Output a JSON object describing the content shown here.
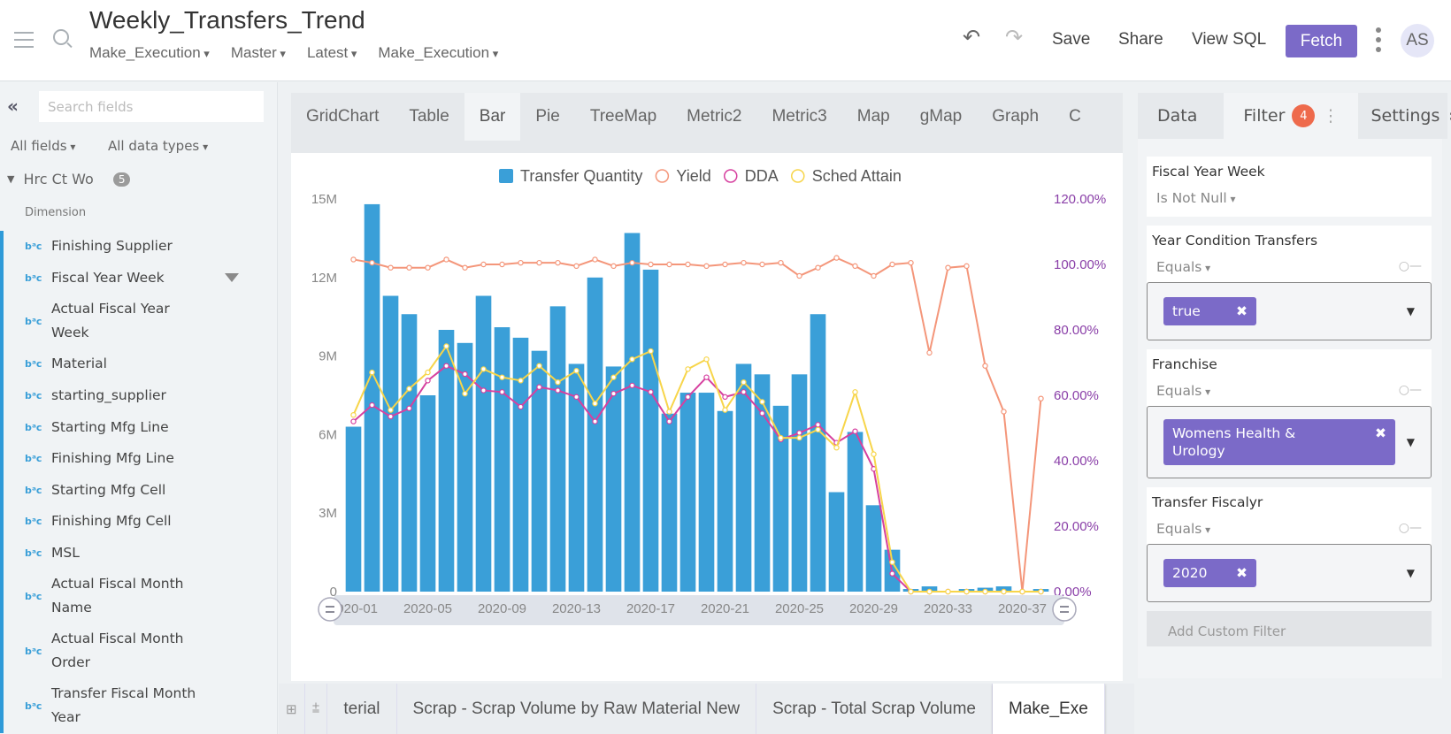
{
  "header": {
    "title": "Weekly_Transfers_Trend",
    "crumbs": [
      "Make_Execution",
      "Master",
      "Latest",
      "Make_Execution"
    ],
    "save": "Save",
    "share": "Share",
    "view_sql": "View SQL",
    "fetch": "Fetch",
    "avatar": "AS",
    "accent": "#7b6ac8"
  },
  "sidebar": {
    "search_placeholder": "Search fields",
    "all_fields": "All fields",
    "all_types": "All data types",
    "group": "Hrc Ct Wo",
    "group_count": "5",
    "section": "Dimension",
    "items": [
      {
        "label": "Finishing Supplier"
      },
      {
        "label": "Fiscal Year Week",
        "filtered": true
      },
      {
        "label": "Actual Fiscal Year Week"
      },
      {
        "label": "Material"
      },
      {
        "label": "starting_supplier"
      },
      {
        "label": "Starting Mfg Line"
      },
      {
        "label": "Finishing Mfg Line"
      },
      {
        "label": "Starting Mfg Cell"
      },
      {
        "label": "Finishing Mfg Cell"
      },
      {
        "label": "MSL"
      },
      {
        "label": "Actual Fiscal Month Name"
      },
      {
        "label": "Actual Fiscal Month Order"
      },
      {
        "label": "Transfer Fiscal Month Year"
      }
    ],
    "type_icon": "string-abc-icon"
  },
  "chart_tabs": [
    "GridChart",
    "Table",
    "Bar",
    "Pie",
    "TreeMap",
    "Metric2",
    "Metric3",
    "Map",
    "gMap",
    "Graph",
    "C"
  ],
  "active_chart_tab": "Bar",
  "bottom_tabs": [
    "terial",
    "Scrap - Scrap Volume by Raw Material New",
    "Scrap - Total Scrap Volume",
    "Make_Exe"
  ],
  "right": {
    "tabs": [
      "Data",
      "Filter",
      "Settings"
    ],
    "filter_count": "4",
    "filters": [
      {
        "title": "Fiscal Year Week",
        "op": "Is Not Null"
      },
      {
        "title": "Year Condition Transfers",
        "op": "Equals",
        "value": "true"
      },
      {
        "title": "Franchise",
        "op": "Equals",
        "value": "Womens Health & Urology"
      },
      {
        "title": "Transfer Fiscalyr",
        "op": "Equals",
        "value": "2020"
      }
    ],
    "add_filter": "Add Custom Filter"
  },
  "chart_data": {
    "type": "bar",
    "categories": [
      "2020-01",
      "2020-02",
      "2020-03",
      "2020-04",
      "2020-05",
      "2020-06",
      "2020-07",
      "2020-08",
      "2020-09",
      "2020-10",
      "2020-11",
      "2020-12",
      "2020-13",
      "2020-14",
      "2020-15",
      "2020-16",
      "2020-17",
      "2020-18",
      "2020-19",
      "2020-20",
      "2020-21",
      "2020-22",
      "2020-23",
      "2020-24",
      "2020-25",
      "2020-26",
      "2020-27",
      "2020-28",
      "2020-29",
      "2020-30",
      "2020-31",
      "2020-32",
      "2020-33",
      "2020-34",
      "2020-35",
      "2020-36",
      "2020-37",
      "2020-38"
    ],
    "x_tick_labels": [
      "2020-01",
      "2020-05",
      "2020-09",
      "2020-13",
      "2020-17",
      "2020-21",
      "2020-25",
      "2020-29",
      "2020-33",
      "2020-37"
    ],
    "y_left": {
      "ticks": [
        "0",
        "3M",
        "6M",
        "9M",
        "12M",
        "15M"
      ],
      "range": [
        0,
        15000000
      ]
    },
    "y_right": {
      "ticks": [
        "0.00%",
        "20.00%",
        "40.00%",
        "60.00%",
        "80.00%",
        "100.00%",
        "120.00%"
      ],
      "range": [
        0,
        120
      ]
    },
    "legend_position": "top",
    "series": [
      {
        "name": "Transfer Quantity",
        "kind": "bar",
        "axis": "left",
        "color": "#3a9fd8",
        "values": [
          6300000,
          14800000,
          11300000,
          10600000,
          7500000,
          10000000,
          9500000,
          11300000,
          10100000,
          9700000,
          9200000,
          10900000,
          8700000,
          12000000,
          8600000,
          13700000,
          12300000,
          6800000,
          7600000,
          7600000,
          6900000,
          8700000,
          8300000,
          7100000,
          8300000,
          10600000,
          3800000,
          6100000,
          3300000,
          1600000,
          100000,
          200000,
          0,
          100000,
          150000,
          200000,
          0,
          100000
        ]
      },
      {
        "name": "Yield",
        "kind": "line",
        "axis": "right",
        "color": "#f4967a",
        "values": [
          101.5,
          100.5,
          99,
          99,
          99,
          101.5,
          99,
          100,
          100,
          100.5,
          100.5,
          100.5,
          99.5,
          101.5,
          99.5,
          100.5,
          100,
          100,
          100,
          99.5,
          100,
          100.5,
          100,
          100.5,
          96.5,
          99,
          102,
          99.5,
          96.5,
          100,
          100.5,
          73,
          99,
          99.5,
          69,
          55,
          0,
          59
        ]
      },
      {
        "name": "DDA",
        "kind": "line",
        "axis": "right",
        "color": "#d6409f",
        "values": [
          52,
          57,
          53.5,
          56,
          64.5,
          69,
          66.5,
          61.5,
          61,
          56.5,
          62.5,
          61.5,
          59.5,
          52,
          60.5,
          63,
          61,
          52,
          59.5,
          65.5,
          59.5,
          61,
          54.5,
          46.5,
          48.5,
          51,
          45.5,
          49,
          37.5,
          5.5,
          0,
          0,
          0,
          0,
          0,
          0,
          0,
          0
        ]
      },
      {
        "name": "Sched Attain",
        "kind": "line",
        "axis": "right",
        "color": "#f7d54a",
        "values": [
          54,
          67,
          55.5,
          62,
          67,
          75,
          60.5,
          68,
          65.5,
          64.5,
          69,
          64,
          67.5,
          57.5,
          65.5,
          71,
          73.5,
          55,
          68,
          71,
          55.5,
          64,
          58,
          47,
          47,
          49.5,
          44,
          61,
          42,
          9,
          0,
          0,
          0,
          0,
          0,
          0,
          0,
          0
        ]
      }
    ]
  }
}
